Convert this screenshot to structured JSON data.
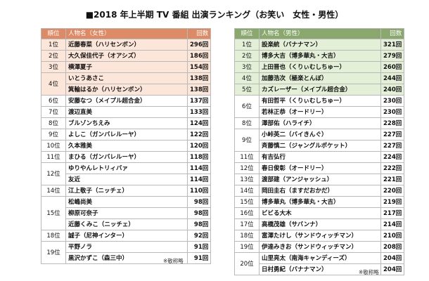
{
  "title": "■2018 年上半期 TV 番組 出演ランキング（お笑い　女性・男性）",
  "female": {
    "headers": {
      "rank": "順位",
      "name": "人物名（女性）",
      "count": "回数"
    },
    "rows": [
      {
        "rank": "1位",
        "name": "近藤春菜（ハリセンボン）",
        "count": "296回"
      },
      {
        "rank": "2位",
        "name": "大久保佳代子（オアシズ）",
        "count": "186回"
      },
      {
        "rank": "3位",
        "name": "横澤夏子",
        "count": "154回"
      },
      {
        "rank": "4位",
        "name": "いとうあさこ",
        "count": "138回"
      },
      {
        "rank": "",
        "name": "箕輪はるか（ハリセンボン）",
        "count": "138回"
      },
      {
        "rank": "6位",
        "name": "安藤なつ（メイプル超合金）",
        "count": "137回"
      },
      {
        "rank": "7位",
        "name": "渡辺直美",
        "count": "133回"
      },
      {
        "rank": "8位",
        "name": "ブルゾンちえみ",
        "count": "124回"
      },
      {
        "rank": "9位",
        "name": "よしこ（ガンバレルーヤ）",
        "count": "122回"
      },
      {
        "rank": "10位",
        "name": "久本雅美",
        "count": "120回"
      },
      {
        "rank": "11位",
        "name": "まひる（ガンバレルーヤ）",
        "count": "118回"
      },
      {
        "rank": "12位",
        "name": "ゆりやんレトリィバァ",
        "count": "114回"
      },
      {
        "rank": "",
        "name": "友近",
        "count": "114回"
      },
      {
        "rank": "14位",
        "name": "江上敬子（ニッチェ）",
        "count": "110回"
      },
      {
        "rank": "15位",
        "name": "松嶋尚美",
        "count": "98回"
      },
      {
        "rank": "",
        "name": "柳原可奈子",
        "count": "98回"
      },
      {
        "rank": "",
        "name": "近藤くみこ（ニッチェ）",
        "count": "98回"
      },
      {
        "rank": "18位",
        "name": "誠子（尼神インター）",
        "count": "92回"
      },
      {
        "rank": "19位",
        "name": "平野ノラ",
        "count": "91回"
      },
      {
        "rank": "",
        "name": "黒沢かずこ（森三中）",
        "count": "91回"
      }
    ],
    "note": "※敬称略"
  },
  "male": {
    "headers": {
      "rank": "順位",
      "name": "人物名（男性）",
      "count": "回数"
    },
    "rows": [
      {
        "rank": "1位",
        "name": "設楽統（バナナマン）",
        "count": "321回"
      },
      {
        "rank": "2位",
        "name": "博多大吉（博多華丸・大吉）",
        "count": "279回"
      },
      {
        "rank": "3位",
        "name": "上田晋也（くりぃむしちゅー）",
        "count": "260回"
      },
      {
        "rank": "4位",
        "name": "加藤浩次（極楽とんぼ）",
        "count": "244回"
      },
      {
        "rank": "5位",
        "name": "カズレーザー（メイプル超合金）",
        "count": "240回"
      },
      {
        "rank": "6位",
        "name": "有田哲平（くりぃむしちゅー）",
        "count": "230回"
      },
      {
        "rank": "",
        "name": "若林正恭（オードリー）",
        "count": "230回"
      },
      {
        "rank": "8位",
        "name": "澤部佑（ハライチ）",
        "count": "228回"
      },
      {
        "rank": "9位",
        "name": "小峠英二（バイきんぐ）",
        "count": "227回"
      },
      {
        "rank": "",
        "name": "斉藤慎二（ジャングルポケット）",
        "count": "227回"
      },
      {
        "rank": "11位",
        "name": "有吉弘行",
        "count": "224回"
      },
      {
        "rank": "12位",
        "name": "春日俊彰（オードリー）",
        "count": "222回"
      },
      {
        "rank": "13位",
        "name": "渡部建（アンジャッシュ）",
        "count": "221回"
      },
      {
        "rank": "14位",
        "name": "岡田圭右（ますだおかだ）",
        "count": "220回"
      },
      {
        "rank": "15位",
        "name": "博多華丸（博多華丸・大吉）",
        "count": "219回"
      },
      {
        "rank": "16位",
        "name": "ビビる大木",
        "count": "217回"
      },
      {
        "rank": "17位",
        "name": "高橋茂雄（サバンナ）",
        "count": "214回"
      },
      {
        "rank": "18位",
        "name": "富澤たけし（サンドウィッチマン）",
        "count": "210回"
      },
      {
        "rank": "19位",
        "name": "伊達みきお（サンドウィッチマン）",
        "count": "208回"
      },
      {
        "rank": "20位",
        "name": "山里亮太（南海キャンディーズ）",
        "count": "204回"
      },
      {
        "rank": "",
        "name": "日村勇紀（バナナマン）",
        "count": "204回"
      }
    ],
    "note": "※敬称略"
  }
}
